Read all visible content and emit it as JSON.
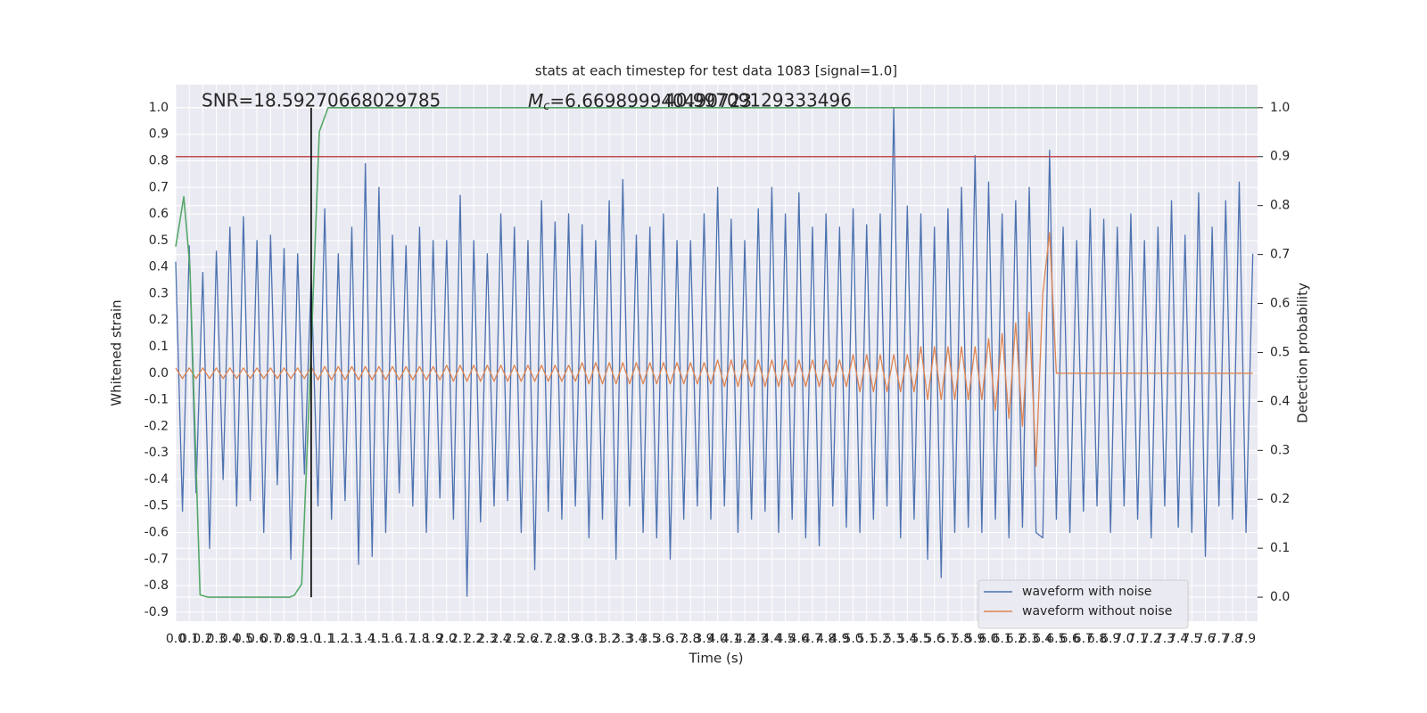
{
  "chart_data": {
    "type": "line",
    "title": "stats at each timestep for test data 1083 [signal=1.0]",
    "xlabel": "Time (s)",
    "ylabel": "Whitened strain",
    "y2label": "Detection probability",
    "annotations": {
      "snr": "SNR=18.59270668029785",
      "mc_symbol": "M",
      "mc_subscript": "c",
      "mc_text": "=6.669899940490723",
      "overlap_text": "40.99709129333496"
    },
    "xlim": [
      0,
      7.985
    ],
    "ylim": [
      -0.934,
      1.087
    ],
    "y2lim": [
      -0.049,
      1.047
    ],
    "xticks": [
      {
        "value": 0,
        "label": "0.0"
      },
      0.1,
      0.2,
      0.3,
      0.4,
      0.5,
      0.6,
      0.7,
      0.8,
      0.9,
      {
        "value": 1,
        "label": "1.0"
      },
      1.1,
      1.2,
      1.3,
      1.4,
      1.5,
      1.6,
      1.7,
      1.8,
      1.9,
      {
        "value": 2,
        "label": "2.0"
      },
      2.1,
      2.2,
      2.3,
      2.4,
      2.5,
      2.6,
      2.7,
      2.8,
      2.9,
      {
        "value": 3,
        "label": "3.0"
      },
      3.1,
      3.2,
      3.3,
      3.4,
      3.5,
      3.6,
      3.7,
      3.8,
      3.9,
      {
        "value": 4,
        "label": "4.0"
      },
      4.1,
      4.2,
      4.3,
      4.4,
      4.5,
      4.6,
      4.7,
      4.8,
      4.9,
      {
        "value": 5,
        "label": "5.0"
      },
      5.1,
      5.2,
      5.3,
      5.4,
      5.5,
      5.6,
      5.7,
      5.8,
      5.9,
      {
        "value": 6,
        "label": "6.0"
      },
      6.1,
      6.2,
      6.3,
      6.4,
      6.5,
      6.6,
      6.7,
      6.8,
      6.9,
      {
        "value": 7,
        "label": "7.0"
      },
      7.1,
      7.2,
      7.3,
      7.4,
      7.5,
      7.6,
      7.7,
      7.8,
      7.9
    ],
    "yticks": [
      {
        "value": 1,
        "label": "1.0"
      },
      0.9,
      0.8,
      0.7,
      0.6,
      0.5,
      0.4,
      0.3,
      0.2,
      0.1,
      {
        "value": 0,
        "label": "0.0"
      },
      -0.1,
      -0.2,
      -0.3,
      -0.4,
      -0.5,
      -0.6,
      -0.7,
      -0.8,
      -0.9
    ],
    "y2ticks": [
      {
        "value": 1,
        "label": "1.0"
      },
      0.9,
      0.8,
      0.7,
      0.6,
      0.5,
      0.4,
      0.3,
      0.2,
      0.1,
      {
        "value": 0,
        "label": "0.0"
      }
    ],
    "grid": true,
    "legend": "lower right",
    "x": [
      0,
      0.05,
      0.1,
      0.15,
      0.2,
      0.25,
      0.3,
      0.35,
      0.4,
      0.45,
      0.5,
      0.55,
      0.6,
      0.65,
      0.7,
      0.75,
      0.8,
      0.85,
      0.9,
      0.95,
      1,
      1.05,
      1.1,
      1.15,
      1.2,
      1.25,
      1.3,
      1.35,
      1.4,
      1.45,
      1.5,
      1.55,
      1.6,
      1.65,
      1.7,
      1.75,
      1.8,
      1.85,
      1.9,
      1.95,
      2,
      2.05,
      2.1,
      2.15,
      2.2,
      2.25,
      2.3,
      2.35,
      2.4,
      2.45,
      2.5,
      2.55,
      2.6,
      2.65,
      2.7,
      2.75,
      2.8,
      2.85,
      2.9,
      2.95,
      3,
      3.05,
      3.1,
      3.15,
      3.2,
      3.25,
      3.3,
      3.35,
      3.4,
      3.45,
      3.5,
      3.55,
      3.6,
      3.65,
      3.7,
      3.75,
      3.8,
      3.85,
      3.9,
      3.95,
      4,
      4.05,
      4.1,
      4.15,
      4.2,
      4.25,
      4.3,
      4.35,
      4.4,
      4.45,
      4.5,
      4.55,
      4.6,
      4.65,
      4.7,
      4.75,
      4.8,
      4.85,
      4.9,
      4.95,
      5,
      5.05,
      5.1,
      5.15,
      5.2,
      5.25,
      5.3,
      5.35,
      5.4,
      5.45,
      5.5,
      5.55,
      5.6,
      5.65,
      5.7,
      5.75,
      5.8,
      5.85,
      5.9,
      5.95,
      6,
      6.05,
      6.1,
      6.15,
      6.2,
      6.25,
      6.3,
      6.35,
      6.4,
      6.45,
      6.5,
      6.55,
      6.6,
      6.65,
      6.7,
      6.75,
      6.8,
      6.85,
      6.9,
      6.95,
      7,
      7.05,
      7.1,
      7.15,
      7.2,
      7.25,
      7.3,
      7.35,
      7.4,
      7.45,
      7.5,
      7.55,
      7.6,
      7.65,
      7.7,
      7.75,
      7.8,
      7.85,
      7.9,
      7.95
    ],
    "series": [
      {
        "name": "waveform with noise",
        "color": "#4c72b0",
        "values": [
          0.42,
          -0.52,
          0.48,
          -0.45,
          0.38,
          -0.66,
          0.46,
          -0.4,
          0.55,
          -0.5,
          0.59,
          -0.48,
          0.5,
          -0.6,
          0.52,
          -0.42,
          0.47,
          -0.7,
          0.45,
          -0.38,
          0.36,
          -0.5,
          0.62,
          -0.55,
          0.45,
          -0.48,
          0.55,
          -0.72,
          0.79,
          -0.69,
          0.7,
          -0.6,
          0.52,
          -0.45,
          0.48,
          -0.5,
          0.55,
          -0.6,
          0.5,
          -0.47,
          0.5,
          -0.55,
          0.67,
          -0.84,
          0.5,
          -0.56,
          0.45,
          -0.5,
          0.6,
          -0.48,
          0.55,
          -0.6,
          0.5,
          -0.74,
          0.65,
          -0.52,
          0.57,
          -0.55,
          0.6,
          -0.5,
          0.56,
          -0.62,
          0.5,
          -0.55,
          0.65,
          -0.7,
          0.73,
          -0.5,
          0.52,
          -0.6,
          0.55,
          -0.62,
          0.6,
          -0.7,
          0.5,
          -0.55,
          0.5,
          -0.5,
          0.6,
          -0.55,
          0.7,
          -0.5,
          0.58,
          -0.6,
          0.5,
          -0.55,
          0.62,
          -0.52,
          0.7,
          -0.6,
          0.6,
          -0.55,
          0.68,
          -0.62,
          0.55,
          -0.65,
          0.6,
          -0.5,
          0.55,
          -0.58,
          0.62,
          -0.6,
          0.56,
          -0.55,
          0.6,
          -0.5,
          1.0,
          -0.62,
          0.63,
          -0.55,
          0.6,
          -0.7,
          0.55,
          -0.77,
          0.62,
          -0.6,
          0.7,
          -0.58,
          0.82,
          -0.6,
          0.72,
          -0.55,
          0.6,
          -0.62,
          0.65,
          -0.58,
          0.7,
          -0.6,
          -0.62,
          0.84,
          -0.55,
          0.55,
          -0.6,
          0.5,
          -0.52,
          0.62,
          -0.5,
          0.58,
          -0.6,
          0.55,
          -0.5,
          0.6,
          -0.55,
          0.5,
          -0.62,
          0.55,
          -0.5,
          0.65,
          -0.58,
          0.52,
          -0.6,
          0.68,
          -0.69,
          0.55,
          -0.5,
          0.65,
          -0.55,
          0.72,
          -0.6,
          0.45
        ]
      },
      {
        "name": "waveform without noise",
        "color": "#dd8452",
        "values": [
          0.02,
          -0.02,
          0.02,
          -0.02,
          0.02,
          -0.02,
          0.02,
          -0.02,
          0.02,
          -0.02,
          0.02,
          -0.02,
          0.02,
          -0.02,
          0.02,
          -0.02,
          0.02,
          -0.02,
          0.02,
          -0.02,
          0.025,
          -0.025,
          0.025,
          -0.025,
          0.025,
          -0.025,
          0.025,
          -0.025,
          0.025,
          -0.025,
          0.025,
          -0.025,
          0.025,
          -0.025,
          0.025,
          -0.025,
          0.025,
          -0.025,
          0.025,
          -0.025,
          0.03,
          -0.03,
          0.03,
          -0.03,
          0.03,
          -0.03,
          0.03,
          -0.03,
          0.03,
          -0.03,
          0.03,
          -0.03,
          0.03,
          -0.03,
          0.03,
          -0.03,
          0.03,
          -0.03,
          0.03,
          -0.03,
          0.04,
          -0.04,
          0.04,
          -0.04,
          0.04,
          -0.04,
          0.04,
          -0.04,
          0.04,
          -0.04,
          0.04,
          -0.04,
          0.04,
          -0.04,
          0.04,
          -0.04,
          0.04,
          -0.04,
          0.04,
          -0.04,
          0.05,
          -0.05,
          0.05,
          -0.05,
          0.05,
          -0.05,
          0.05,
          -0.05,
          0.05,
          -0.05,
          0.05,
          -0.05,
          0.05,
          -0.05,
          0.05,
          -0.05,
          0.05,
          -0.05,
          0.05,
          -0.05,
          0.07,
          -0.07,
          0.07,
          -0.07,
          0.07,
          -0.07,
          0.07,
          -0.07,
          0.07,
          -0.07,
          0.1,
          -0.1,
          0.1,
          -0.1,
          0.1,
          -0.1,
          0.1,
          -0.1,
          0.1,
          -0.1,
          0.13,
          -0.14,
          0.15,
          -0.17,
          0.19,
          -0.2,
          0.23,
          -0.35,
          0.3,
          0.53,
          0,
          0,
          0,
          0,
          0,
          0,
          0,
          0,
          0,
          0,
          0,
          0,
          0,
          0,
          0,
          0,
          0,
          0,
          0,
          0,
          0,
          0,
          0,
          0,
          0,
          0,
          0,
          0,
          0,
          0
        ]
      },
      {
        "axis": "y2",
        "color": "#55a868",
        "x": [
          0,
          0.06,
          0.105,
          0.18,
          0.24,
          0.84,
          0.875,
          0.93,
          0.99,
          1.06,
          1.125,
          7.985
        ],
        "values": [
          0.716,
          0.818,
          0.674,
          0.005,
          0,
          0,
          0.004,
          0.027,
          0.437,
          0.951,
          1,
          1
        ]
      }
    ],
    "threshold": {
      "y2": 0.9,
      "color": "#c44e52"
    },
    "marker_line": {
      "x": 1.0,
      "y2": [
        0,
        1
      ],
      "color": "#000000"
    }
  }
}
